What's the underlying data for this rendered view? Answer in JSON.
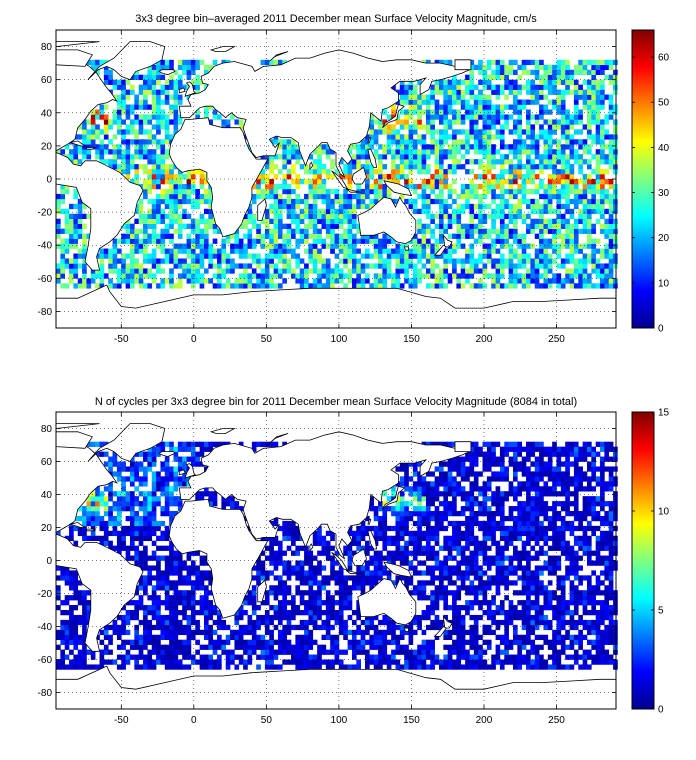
{
  "chart_data": [
    {
      "type": "heatmap",
      "title": "3x3 degree bin–averaged 2011 December mean Surface Velocity Magnitude, cm/s",
      "x_ticks": [
        -50,
        0,
        50,
        100,
        150,
        200,
        250
      ],
      "y_ticks": [
        80,
        60,
        40,
        20,
        0,
        -20,
        -40,
        -60,
        -80
      ],
      "xlim": [
        -95,
        291
      ],
      "ylim": [
        -90,
        90
      ],
      "grid": true,
      "bin_size_deg": 3,
      "colorbar": {
        "ticks": [
          0,
          10,
          20,
          30,
          40,
          50,
          60
        ],
        "range": [
          0,
          66
        ],
        "colormap": "jet"
      },
      "variable": "velocity"
    },
    {
      "type": "heatmap",
      "title": "N of cycles per 3x3 degree bin for 2011 December mean Surface Velocity Magnitude (8084 in total)",
      "x_ticks": [
        -50,
        0,
        50,
        100,
        150,
        200,
        250
      ],
      "y_ticks": [
        80,
        60,
        40,
        20,
        0,
        -20,
        -40,
        -60,
        -80
      ],
      "xlim": [
        -95,
        291
      ],
      "ylim": [
        -90,
        90
      ],
      "grid": true,
      "bin_size_deg": 3,
      "colorbar": {
        "ticks": [
          0,
          5,
          10,
          15
        ],
        "range": [
          0,
          15
        ],
        "colormap": "jet"
      },
      "variable": "count"
    }
  ]
}
